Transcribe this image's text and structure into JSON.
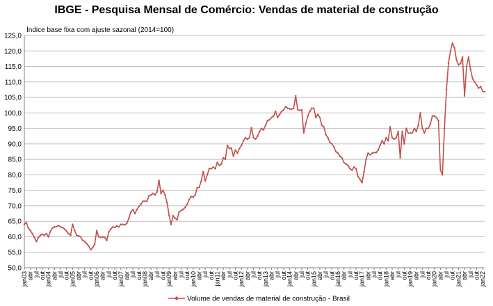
{
  "chart_data": {
    "type": "line",
    "title": "IBGE - Pesquisa Mensal de Comércio: Vendas de material de construção",
    "ylabel": "Índice base fixa com ajuste sazonal (2014=100)",
    "xlabel": "",
    "ylim": [
      50,
      125
    ],
    "yticks": [
      "50,0",
      "55,0",
      "60,0",
      "65,0",
      "70,0",
      "75,0",
      "80,0",
      "85,0",
      "90,0",
      "95,0",
      "100,0",
      "105,0",
      "110,0",
      "115,0",
      "120,0",
      "125,0"
    ],
    "grid": "horizontal",
    "legend_position": "bottom",
    "color": "#C0504D",
    "x_start": "jan03",
    "xticks": [
      "jan03",
      "abr",
      "jul",
      "out",
      "jan04",
      "abr",
      "jul",
      "out",
      "jan05",
      "abr",
      "jul",
      "out",
      "jan06",
      "abr",
      "jul",
      "out",
      "jan07",
      "abr",
      "jul",
      "out",
      "jan08",
      "abr",
      "jul",
      "out",
      "jan09",
      "abr",
      "jul",
      "out",
      "jan10",
      "abr",
      "jul",
      "out",
      "jan11",
      "abr",
      "jul",
      "out",
      "jan12",
      "abr",
      "jul",
      "out",
      "jan13",
      "abr",
      "jul",
      "out",
      "jan14",
      "abr",
      "jul",
      "out",
      "jan15",
      "abr",
      "jul",
      "out",
      "jan16",
      "abr",
      "jul",
      "out",
      "jan17",
      "abr",
      "jul",
      "out",
      "jan18",
      "abr",
      "jul",
      "out",
      "jan19",
      "abr",
      "jul",
      "out",
      "jan20",
      "abr",
      "jul",
      "out",
      "jan21",
      "abr",
      "jul",
      "out",
      "jan22"
    ],
    "series": [
      {
        "name": "Volume de vendas de material de construção - Brasil",
        "values": [
          64.0,
          64.6,
          62.8,
          62.0,
          61.0,
          59.8,
          58.5,
          59.8,
          60.5,
          60.8,
          60.5,
          61.0,
          60.0,
          61.8,
          62.8,
          63.2,
          63.3,
          63.6,
          63.2,
          63.0,
          62.5,
          61.8,
          61.0,
          60.5,
          64.0,
          62.0,
          60.5,
          60.3,
          60.0,
          58.9,
          58.5,
          57.8,
          57.0,
          55.8,
          56.5,
          57.6,
          62.0,
          60.0,
          59.8,
          60.0,
          59.8,
          58.8,
          61.5,
          62.5,
          63.2,
          63.0,
          63.5,
          63.2,
          64.0,
          64.0,
          63.8,
          64.4,
          66.0,
          68.0,
          68.8,
          67.5,
          68.8,
          69.8,
          70.5,
          71.5,
          71.5,
          71.5,
          73.2,
          73.5,
          74.0,
          73.5,
          74.5,
          78.2,
          74.0,
          75.0,
          73.5,
          71.0,
          67.0,
          64.0,
          66.8,
          66.0,
          65.5,
          68.0,
          68.5,
          68.8,
          69.5,
          70.5,
          72.0,
          73.0,
          72.8,
          73.5,
          75.8,
          76.0,
          78.0,
          81.0,
          78.0,
          80.0,
          82.0,
          82.0,
          82.5,
          82.0,
          84.0,
          83.0,
          83.5,
          85.5,
          85.0,
          89.5,
          88.5,
          88.6,
          86.0,
          88.0,
          87.0,
          88.5,
          89.5,
          91.0,
          92.0,
          91.5,
          92.0,
          95.2,
          92.0,
          91.5,
          92.5,
          94.0,
          95.0,
          94.5,
          96.0,
          97.5,
          97.8,
          98.5,
          99.0,
          100.5,
          98.5,
          99.5,
          100.5,
          101.0,
          102.0,
          101.5,
          101.3,
          101.2,
          101.5,
          105.5,
          101.0,
          100.8,
          101.0,
          93.5,
          96.5,
          99.0,
          100.5,
          101.5,
          101.5,
          98.5,
          99.5,
          98.5,
          96.0,
          95.5,
          93.0,
          92.0,
          90.5,
          90.0,
          89.0,
          87.5,
          87.0,
          86.0,
          85.5,
          84.0,
          83.5,
          83.0,
          82.0,
          81.5,
          82.5,
          82.0,
          79.5,
          78.5,
          77.5,
          81.0,
          85.0,
          87.0,
          86.5,
          87.0,
          87.2,
          87.2,
          88.0,
          89.5,
          91.0,
          90.0,
          92.0,
          91.0,
          95.5,
          92.0,
          91.5,
          92.0,
          94.0,
          85.5,
          94.0,
          90.0,
          95.0,
          93.5,
          93.5,
          93.5,
          95.0,
          94.0,
          96.0,
          100.0,
          95.0,
          93.5,
          95.0,
          95.0,
          96.5,
          99.0,
          99.0,
          98.5,
          97.5,
          81.5,
          80.0,
          95.0,
          107.5,
          116.0,
          120.0,
          122.5,
          121.0,
          117.0,
          115.5,
          116.0,
          118.0,
          105.5,
          115.0,
          118.0,
          114.0,
          111.0,
          110.0,
          109.0,
          108.0,
          108.5,
          107.0,
          106.8
        ]
      }
    ]
  }
}
